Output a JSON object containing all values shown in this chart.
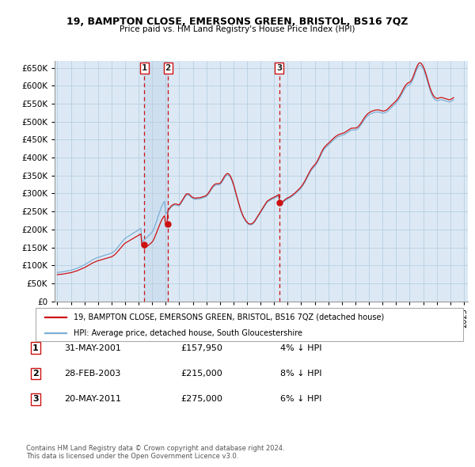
{
  "title": "19, BAMPTON CLOSE, EMERSONS GREEN, BRISTOL, BS16 7QZ",
  "subtitle": "Price paid vs. HM Land Registry's House Price Index (HPI)",
  "ylim": [
    0,
    670000
  ],
  "yticks": [
    0,
    50000,
    100000,
    150000,
    200000,
    250000,
    300000,
    350000,
    400000,
    450000,
    500000,
    550000,
    600000,
    650000
  ],
  "xlim_start": 1995.0,
  "xlim_end": 2025.3,
  "background_color": "#ffffff",
  "chart_bg_color": "#dce9f5",
  "grid_color": "#b8cfe0",
  "hpi_color": "#7bafd4",
  "price_color": "#cc1111",
  "shade_color": "#c5d9ed",
  "transactions": [
    {
      "num": 1,
      "date": "31-MAY-2001",
      "price": 157950,
      "hpi_diff": "4% ↓ HPI",
      "x_year": 2001.41
    },
    {
      "num": 2,
      "date": "28-FEB-2003",
      "price": 215000,
      "hpi_diff": "8% ↓ HPI",
      "x_year": 2003.16
    },
    {
      "num": 3,
      "date": "20-MAY-2011",
      "price": 275000,
      "hpi_diff": "6% ↓ HPI",
      "x_year": 2011.38
    }
  ],
  "legend_label_price": "19, BAMPTON CLOSE, EMERSONS GREEN, BRISTOL, BS16 7QZ (detached house)",
  "legend_label_hpi": "HPI: Average price, detached house, South Gloucestershire",
  "footnote": "Contains HM Land Registry data © Crown copyright and database right 2024.\nThis data is licensed under the Open Government Licence v3.0.",
  "hpi_base_values": [
    80000,
    80500,
    81000,
    81200,
    81500,
    82000,
    82500,
    83000,
    83800,
    84500,
    85000,
    85500,
    86000,
    87000,
    88000,
    89500,
    90500,
    91500,
    92500,
    94000,
    95500,
    97000,
    98500,
    100000,
    101000,
    103000,
    105000,
    107000,
    109000,
    111000,
    113000,
    115000,
    116500,
    118000,
    119500,
    121000,
    122000,
    123000,
    124000,
    125000,
    126000,
    127000,
    128000,
    129000,
    130000,
    131000,
    132000,
    133000,
    134000,
    136000,
    138000,
    141000,
    144000,
    148000,
    152000,
    156000,
    160000,
    164000,
    168000,
    172000,
    175000,
    177000,
    179000,
    181000,
    183000,
    185000,
    187000,
    189000,
    191000,
    193000,
    195000,
    197000,
    199000,
    201000,
    203000,
    165000,
    168000,
    171000,
    174000,
    177000,
    180000,
    183000,
    186000,
    189000,
    193000,
    198000,
    206000,
    215000,
    224000,
    234000,
    243000,
    252000,
    261000,
    268000,
    274000,
    278000,
    243000,
    247000,
    251000,
    255000,
    259000,
    263000,
    265000,
    267000,
    268000,
    268000,
    267000,
    266000,
    266000,
    270000,
    275000,
    280000,
    285000,
    290000,
    295000,
    296000,
    296000,
    294000,
    291000,
    288000,
    286000,
    285000,
    284000,
    284000,
    285000,
    285000,
    285000,
    286000,
    287000,
    288000,
    289000,
    290000,
    292000,
    295000,
    299000,
    304000,
    309000,
    314000,
    318000,
    321000,
    323000,
    324000,
    324000,
    324000,
    325000,
    328000,
    333000,
    338000,
    344000,
    348000,
    351000,
    352000,
    350000,
    346000,
    340000,
    332000,
    323000,
    312000,
    300000,
    289000,
    278000,
    267000,
    256000,
    247000,
    239000,
    232000,
    227000,
    222000,
    218000,
    215000,
    213000,
    213000,
    213000,
    215000,
    218000,
    222000,
    227000,
    232000,
    237000,
    242000,
    247000,
    252000,
    257000,
    262000,
    267000,
    272000,
    276000,
    278000,
    280000,
    282000,
    284000,
    285000,
    287000,
    288000,
    290000,
    292000,
    294000,
    272000,
    272000,
    274000,
    276000,
    278000,
    281000,
    283000,
    285000,
    286000,
    288000,
    290000,
    292000,
    295000,
    297000,
    300000,
    303000,
    306000,
    309000,
    312000,
    316000,
    320000,
    325000,
    330000,
    336000,
    342000,
    348000,
    354000,
    360000,
    365000,
    369000,
    373000,
    376000,
    380000,
    385000,
    391000,
    397000,
    404000,
    411000,
    417000,
    422000,
    426000,
    429000,
    432000,
    435000,
    438000,
    441000,
    444000,
    447000,
    450000,
    453000,
    455000,
    457000,
    459000,
    460000,
    461000,
    462000,
    463000,
    464000,
    466000,
    468000,
    470000,
    472000,
    474000,
    476000,
    477000,
    477000,
    477000,
    477000,
    478000,
    480000,
    483000,
    487000,
    491000,
    496000,
    501000,
    506000,
    510000,
    514000,
    517000,
    519000,
    521000,
    523000,
    524000,
    525000,
    526000,
    527000,
    527000,
    527000,
    527000,
    526000,
    525000,
    524000,
    524000,
    525000,
    526000,
    528000,
    531000,
    534000,
    537000,
    540000,
    543000,
    546000,
    549000,
    552000,
    556000,
    560000,
    565000,
    570000,
    576000,
    582000,
    588000,
    593000,
    597000,
    600000,
    602000,
    603000,
    606000,
    611000,
    618000,
    626000,
    635000,
    643000,
    650000,
    655000,
    657000,
    656000,
    652000,
    647000,
    640000,
    631000,
    621000,
    610000,
    599000,
    589000,
    580000,
    573000,
    567000,
    563000,
    560000,
    559000,
    559000,
    560000,
    561000,
    561000,
    561000,
    560000,
    559000,
    558000,
    557000,
    556000,
    555000,
    556000,
    557000,
    559000,
    561000
  ]
}
